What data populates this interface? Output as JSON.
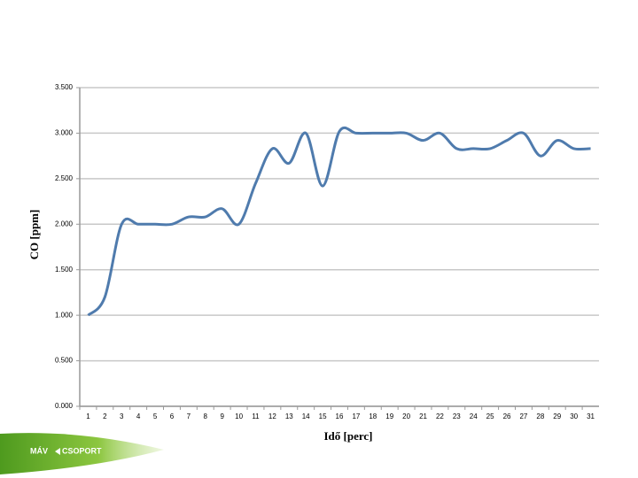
{
  "chart_data": {
    "type": "line",
    "x_label": "Idő [perc]",
    "y_label": "CO [ppm]",
    "categories": [
      "1",
      "2",
      "3",
      "4",
      "5",
      "6",
      "7",
      "8",
      "9",
      "10",
      "11",
      "12",
      "13",
      "14",
      "15",
      "16",
      "17",
      "18",
      "19",
      "20",
      "21",
      "22",
      "23",
      "24",
      "25",
      "26",
      "27",
      "28",
      "29",
      "30",
      "31"
    ],
    "values": [
      1.0,
      1.2,
      2.0,
      2.0,
      2.0,
      2.0,
      2.08,
      2.08,
      2.17,
      2.0,
      2.45,
      2.83,
      2.67,
      3.0,
      2.42,
      3.02,
      3.0,
      3.0,
      3.0,
      3.0,
      2.92,
      3.0,
      2.83,
      2.83,
      2.83,
      2.92,
      3.0,
      2.75,
      2.92,
      2.83,
      2.83
    ],
    "color": "#4f7bad",
    "ylim": [
      0,
      3.5
    ],
    "yticks": [
      {
        "value": 0,
        "label": "0.000"
      },
      {
        "value": 0.5,
        "label": "0.500"
      },
      {
        "value": 1,
        "label": "1.000"
      },
      {
        "value": 1.5,
        "label": "1.500"
      },
      {
        "value": 2,
        "label": "2.000"
      },
      {
        "value": 2.5,
        "label": "2.500"
      },
      {
        "value": 3,
        "label": "3.000"
      },
      {
        "value": 3.5,
        "label": "3.500"
      }
    ],
    "grid": true
  },
  "logo": {
    "left": "MÁV",
    "right": "CSOPORT"
  }
}
